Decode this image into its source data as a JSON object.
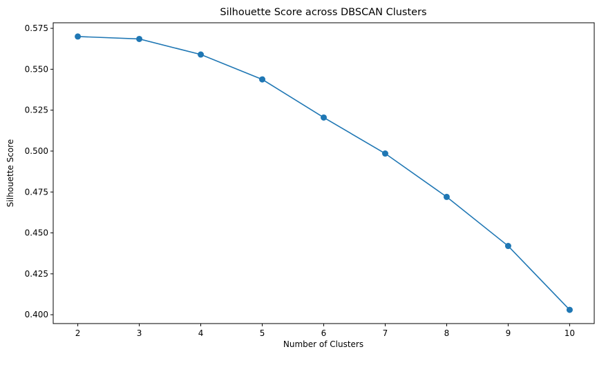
{
  "chart_data": {
    "type": "line",
    "title": "Silhouette Score across DBSCAN Clusters",
    "xlabel": "Number of Clusters",
    "ylabel": "Silhouette Score",
    "x": [
      2,
      3,
      4,
      5,
      6,
      7,
      8,
      9,
      10
    ],
    "series": [
      {
        "values": [
          0.57,
          0.5685,
          0.559,
          0.5438,
          0.5205,
          0.4985,
          0.472,
          0.442,
          0.403
        ],
        "marker": "circle",
        "color": "#1f77b4"
      }
    ],
    "xticks": [
      "2",
      "3",
      "4",
      "5",
      "6",
      "7",
      "8",
      "9",
      "10"
    ],
    "yticks": [
      "0.400",
      "0.425",
      "0.450",
      "0.475",
      "0.500",
      "0.525",
      "0.550",
      "0.575"
    ],
    "xlim": [
      1.6,
      10.4
    ],
    "ylim": [
      0.3946,
      0.5784
    ],
    "grid": false,
    "legend": "none"
  }
}
